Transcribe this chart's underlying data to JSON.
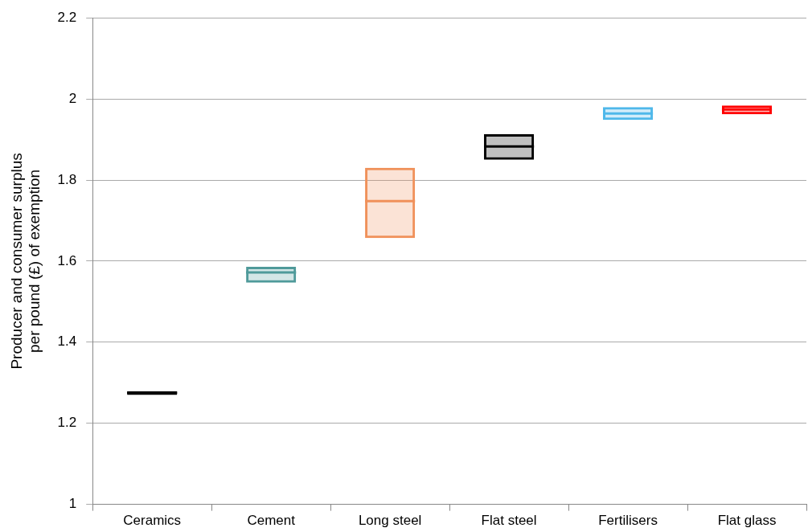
{
  "chart_data": {
    "type": "box",
    "ylabel": "Producer and consumer surplus per pound (£) of exemption",
    "categories": [
      "Ceramics",
      "Cement",
      "Long steel",
      "Flat steel",
      "Fertilisers",
      "Flat glass"
    ],
    "colors": [
      "#000000",
      "#4f9a9a",
      "#f0915a",
      "#000000",
      "#4fb8ea",
      "#ff0000"
    ],
    "boxes": [
      {
        "low": 1.27,
        "q1": 1.27,
        "median": 1.275,
        "q3": 1.279,
        "high": 1.279
      },
      {
        "low": 1.547,
        "q1": 1.547,
        "median": 1.572,
        "q3": 1.586,
        "high": 1.586
      },
      {
        "low": 1.657,
        "q1": 1.657,
        "median": 1.748,
        "q3": 1.83,
        "high": 1.83
      },
      {
        "low": 1.85,
        "q1": 1.85,
        "median": 1.883,
        "q3": 1.913,
        "high": 1.913
      },
      {
        "low": 1.948,
        "q1": 1.948,
        "median": 1.964,
        "q3": 1.98,
        "high": 1.98
      },
      {
        "low": 1.962,
        "q1": 1.962,
        "median": 1.974,
        "q3": 1.984,
        "high": 1.984
      }
    ],
    "ylim": [
      1,
      2.2
    ],
    "yticks": [
      1,
      1.2,
      1.4,
      1.6,
      1.8,
      2,
      2.2
    ],
    "grid": "y"
  }
}
